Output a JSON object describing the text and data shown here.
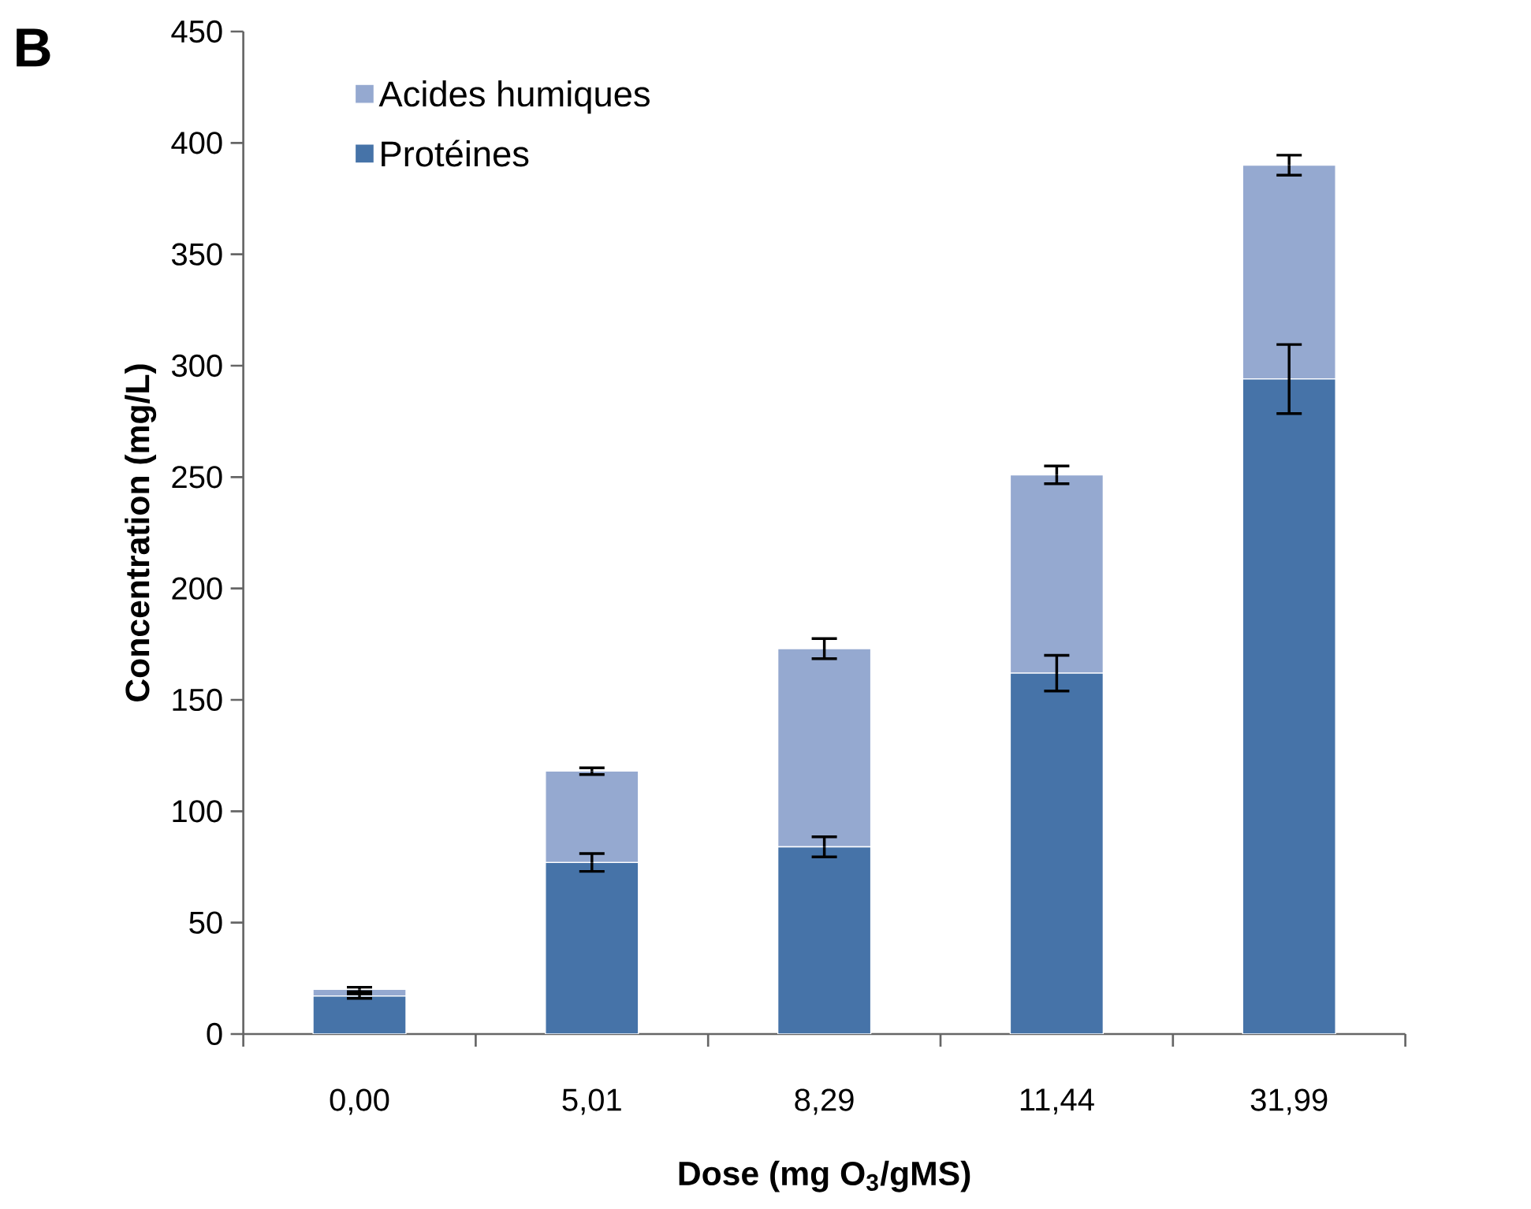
{
  "chart_data": {
    "type": "bar",
    "title": "B",
    "stacked": true,
    "xlabel": "Dose (mg O$_{3}$/gMS)",
    "ylabel": "Concentration (mg/L)",
    "categories": [
      "0,00",
      "5,01",
      "8,29",
      "11,44",
      "31,99"
    ],
    "series": [
      {
        "name": "Protéines",
        "color": "#4673a8",
        "values": [
          17,
          77,
          84,
          162,
          294
        ],
        "errors": [
          1,
          4,
          4.5,
          8,
          15.5
        ]
      },
      {
        "name": "Acides humiques",
        "color": "#95a9d0",
        "values": [
          3,
          41,
          89,
          89,
          96
        ],
        "errors": [
          1,
          1.5,
          4.5,
          4,
          4.5
        ]
      }
    ],
    "ylim": [
      0,
      450
    ],
    "yticks": [
      0,
      50,
      100,
      150,
      200,
      250,
      300,
      350,
      400,
      450
    ],
    "legend": "top left"
  }
}
